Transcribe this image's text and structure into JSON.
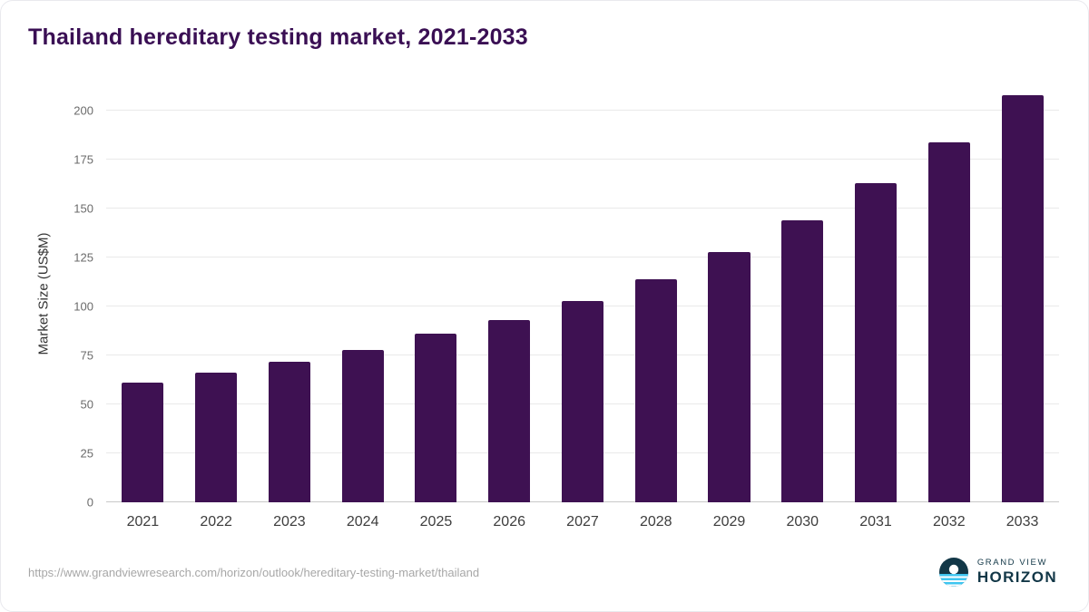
{
  "title": "Thailand hereditary testing market, 2021-2033",
  "chart_data": {
    "type": "bar",
    "title": "Thailand hereditary testing market, 2021-2033",
    "categories": [
      "2021",
      "2022",
      "2023",
      "2024",
      "2025",
      "2026",
      "2027",
      "2028",
      "2029",
      "2030",
      "2031",
      "2032",
      "2033"
    ],
    "values": [
      61,
      66,
      72,
      78,
      86,
      93,
      103,
      114,
      128,
      144,
      163,
      184,
      208
    ],
    "xlabel": "",
    "ylabel": "Market Size (US$M)",
    "ylim": [
      0,
      213
    ],
    "yticks": [
      0,
      25,
      50,
      75,
      100,
      125,
      150,
      175,
      200
    ],
    "grid": true,
    "legend": "none",
    "bar_color": "#3E1152"
  },
  "colors": {
    "title": "#3A0F54",
    "bar": "#3E1152",
    "gridline": "#e9e9e9",
    "logo_navy": "#123747",
    "logo_blue": "#3EC5F0"
  },
  "footer": {
    "source_url": "https://www.grandviewresearch.com/horizon/outlook/hereditary-testing-market/thailand",
    "logo": {
      "line1": "GRAND VIEW",
      "line2": "HORIZON"
    }
  }
}
